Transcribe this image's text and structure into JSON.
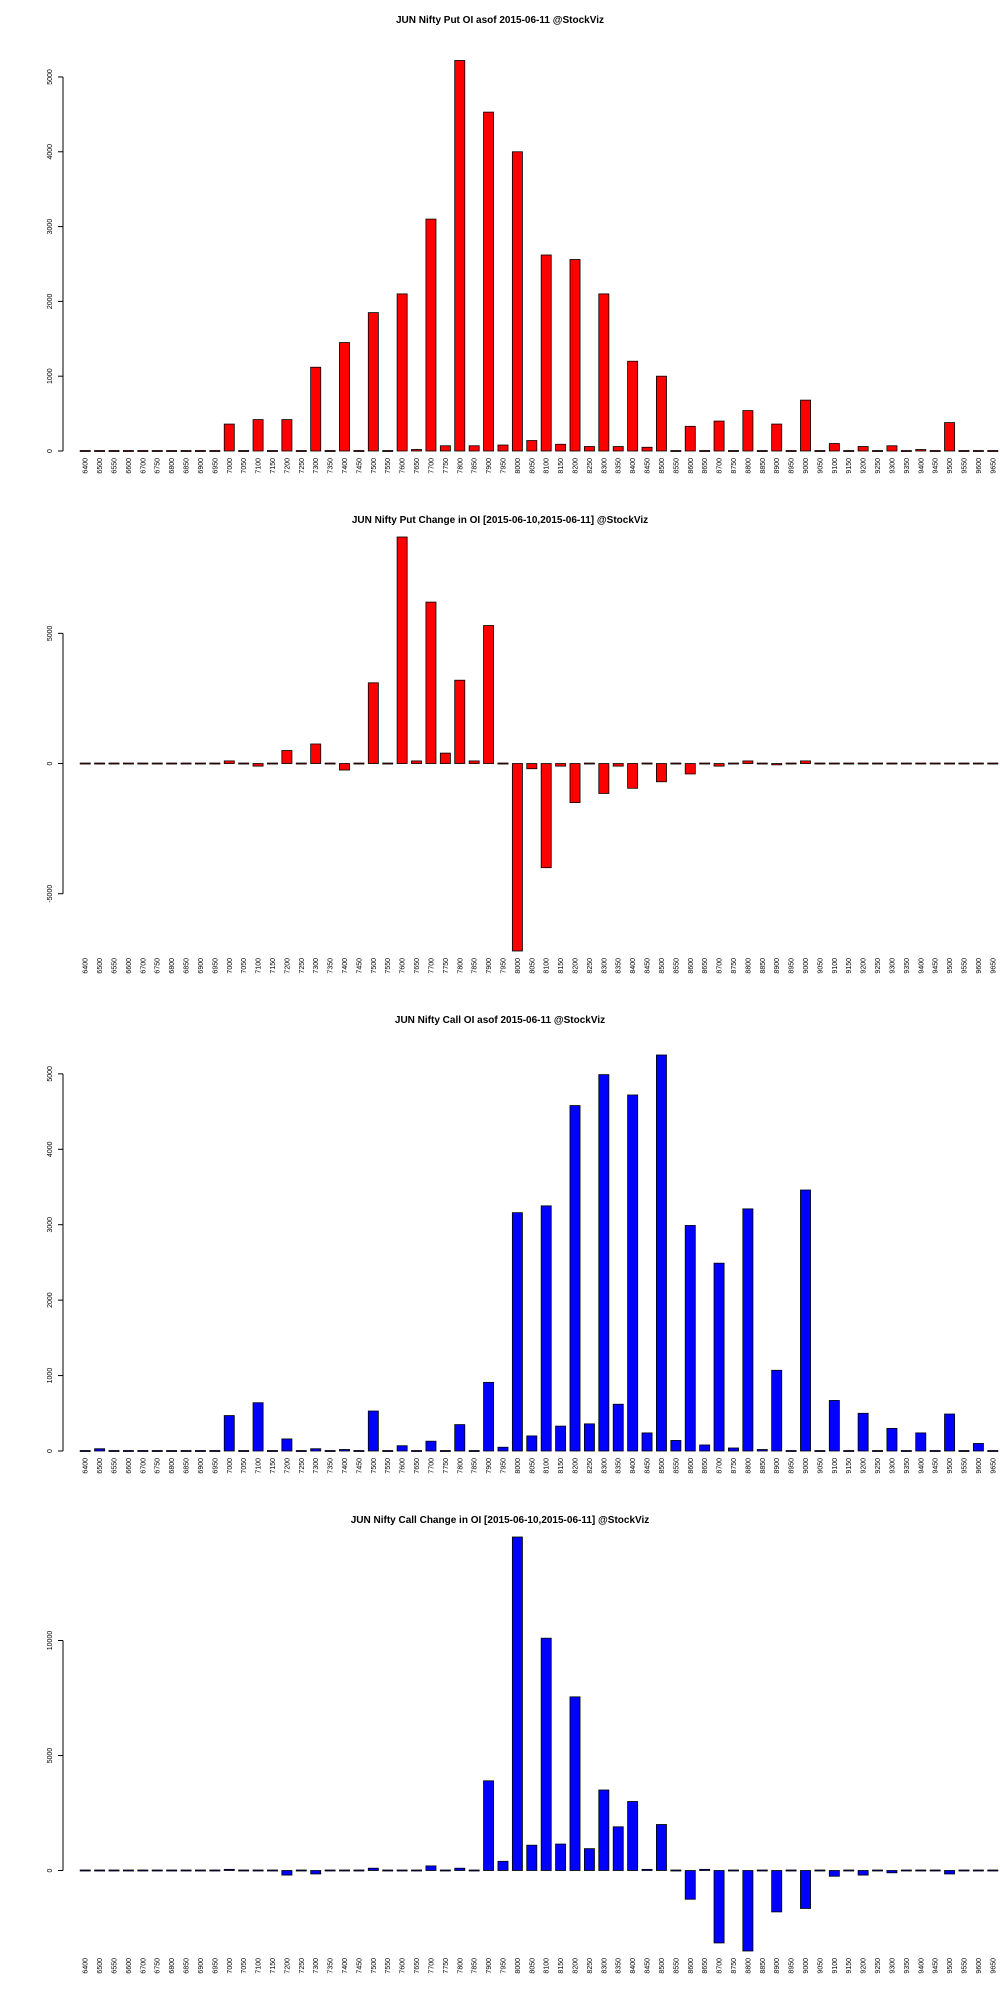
{
  "strikes": [
    "6400",
    "6500",
    "6550",
    "6600",
    "6700",
    "6750",
    "6800",
    "6850",
    "6900",
    "6950",
    "7000",
    "7050",
    "7100",
    "7150",
    "7200",
    "7250",
    "7300",
    "7350",
    "7400",
    "7450",
    "7500",
    "7550",
    "7600",
    "7650",
    "7700",
    "7750",
    "7800",
    "7850",
    "7900",
    "7950",
    "8000",
    "8050",
    "8100",
    "8150",
    "8200",
    "8250",
    "8300",
    "8350",
    "8400",
    "8450",
    "8500",
    "8550",
    "8600",
    "8650",
    "8700",
    "8750",
    "8800",
    "8850",
    "8900",
    "8950",
    "9000",
    "9050",
    "9100",
    "9150",
    "9200",
    "9250",
    "9300",
    "9350",
    "9400",
    "9450",
    "9500",
    "9550",
    "9600",
    "9650"
  ],
  "chart_data": [
    {
      "type": "bar",
      "title": "JUN Nifty Put OI asof 2015-06-11 @StockViz",
      "color": "#ff0000",
      "ylim": [
        0,
        5200
      ],
      "yticks": [
        0,
        1000,
        2000,
        3000,
        4000,
        5000
      ],
      "values": [
        0,
        0,
        0,
        0,
        0,
        0,
        0,
        0,
        10,
        0,
        360,
        0,
        420,
        0,
        420,
        0,
        1120,
        0,
        1450,
        0,
        1850,
        0,
        2100,
        20,
        3100,
        70,
        5220,
        70,
        4530,
        80,
        4000,
        140,
        2620,
        90,
        2560,
        60,
        2100,
        60,
        1200,
        50,
        1000,
        0,
        330,
        0,
        400,
        0,
        540,
        0,
        360,
        0,
        680,
        0,
        100,
        0,
        60,
        0,
        70,
        0,
        20,
        0,
        380,
        0,
        0,
        0
      ]
    },
    {
      "type": "bar",
      "title": "JUN Nifty Put Change in OI [2015-06-10,2015-06-11] @StockViz",
      "color": "#ff0000",
      "ylim": [
        -7200,
        8700
      ],
      "yticks": [
        -5000,
        0,
        5000
      ],
      "values": [
        0,
        0,
        0,
        0,
        0,
        0,
        0,
        0,
        0,
        0,
        100,
        0,
        -100,
        0,
        500,
        0,
        750,
        0,
        -250,
        0,
        3100,
        0,
        8700,
        100,
        6200,
        400,
        3200,
        100,
        5300,
        0,
        -7200,
        -200,
        -4000,
        -100,
        -1500,
        0,
        -1150,
        -100,
        -950,
        0,
        -700,
        0,
        -400,
        0,
        -100,
        0,
        100,
        0,
        -50,
        0,
        100,
        0,
        0,
        0,
        0,
        0,
        0,
        0,
        0,
        0,
        0,
        0,
        0,
        0
      ]
    },
    {
      "type": "bar",
      "title": "JUN Nifty Call OI asof 2015-06-11 @StockViz",
      "color": "#0000ff",
      "ylim": [
        0,
        5250
      ],
      "yticks": [
        0,
        1000,
        2000,
        3000,
        4000,
        5000
      ],
      "values": [
        0,
        30,
        0,
        0,
        0,
        0,
        0,
        0,
        10,
        0,
        470,
        0,
        640,
        0,
        160,
        0,
        30,
        0,
        20,
        0,
        530,
        0,
        70,
        0,
        130,
        0,
        350,
        0,
        910,
        50,
        3160,
        200,
        3250,
        330,
        4580,
        360,
        4990,
        620,
        4720,
        240,
        5250,
        140,
        2990,
        80,
        2490,
        40,
        3210,
        20,
        1070,
        0,
        3460,
        0,
        670,
        0,
        500,
        0,
        300,
        0,
        240,
        0,
        490,
        0,
        100,
        0
      ]
    },
    {
      "type": "bar",
      "title": "JUN Nifty Call Change in OI [2015-06-10,2015-06-11] @StockViz",
      "color": "#0000ff",
      "ylim": [
        -3500,
        14500
      ],
      "yticks": [
        0,
        5000,
        10000
      ],
      "values": [
        0,
        0,
        0,
        0,
        0,
        0,
        0,
        0,
        0,
        0,
        50,
        0,
        0,
        0,
        -200,
        0,
        -150,
        0,
        0,
        0,
        100,
        0,
        0,
        0,
        200,
        0,
        100,
        0,
        3900,
        400,
        14500,
        1100,
        10100,
        1150,
        7550,
        950,
        3500,
        1900,
        3000,
        50,
        2000,
        0,
        -1250,
        50,
        -3150,
        0,
        -3500,
        0,
        -1800,
        0,
        -1650,
        0,
        -250,
        0,
        -200,
        0,
        -100,
        0,
        0,
        0,
        -150,
        0,
        0,
        0
      ]
    }
  ]
}
